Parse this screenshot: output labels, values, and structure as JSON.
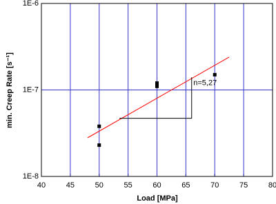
{
  "chart_data": {
    "type": "scatter",
    "x_label": "Load [MPa]",
    "y_label": "min. Creep Rate [s⁻¹]",
    "xlim": [
      40,
      80
    ],
    "xticks": [
      40,
      45,
      50,
      55,
      60,
      65,
      70,
      75,
      80
    ],
    "ylim": [
      1e-08,
      1e-06
    ],
    "yticks": [
      {
        "value": 1e-08,
        "label": "1E-8"
      },
      {
        "value": 1e-07,
        "label": "1E-7"
      },
      {
        "value": 1e-06,
        "label": "1E-6"
      }
    ],
    "y_scale": "log",
    "grid": true,
    "grid_color": "#3333cc",
    "series": [
      {
        "type": "scatter",
        "color": "#000000",
        "x": [
          50,
          50,
          60,
          60,
          70
        ],
        "values": [
          3.8e-08,
          2.3e-08,
          1.2e-07,
          1.1e-07,
          1.5e-07
        ]
      },
      {
        "type": "line",
        "color": "#ff0000",
        "x": [
          48,
          72.5
        ],
        "values": [
          2.8e-08,
          2.4e-07
        ]
      },
      {
        "type": "line",
        "color": "#000000",
        "x": [
          53.5,
          66,
          66
        ],
        "values": [
          4.7e-08,
          4.7e-08,
          1.4e-07
        ]
      }
    ],
    "annotation": {
      "text": "n=5,27",
      "x": 66.3,
      "y": 1.2e-07
    }
  }
}
